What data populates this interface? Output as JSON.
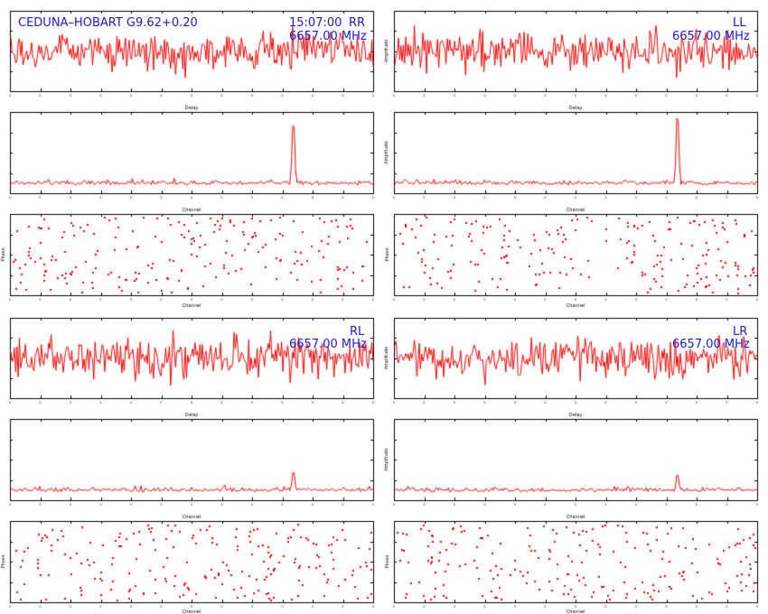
{
  "header": {
    "baseline": "CEDUNA–HOBART G9.62+0.20",
    "time": "15:07:00",
    "frequency": "6657.00 MHz"
  },
  "labels": {
    "delay": "Delay",
    "channel": "Channel",
    "amplitude": "Amplitude",
    "phase": "Phase"
  },
  "colors": {
    "trace": "#ff0000",
    "text": "#1a1adb",
    "axis": "#000000"
  },
  "chart_data": [
    {
      "type": "line",
      "panel": "delay",
      "pol": "RR",
      "xlabel": "Delay",
      "ylabel": "",
      "peak": null
    },
    {
      "type": "line",
      "panel": "channel",
      "pol": "RR",
      "xlabel": "Channel",
      "ylabel": "",
      "peak": {
        "x_frac": 0.78,
        "height": 0.85
      }
    },
    {
      "type": "scatter",
      "panel": "phase",
      "pol": "RR",
      "xlabel": "Channel",
      "ylabel": "Phase"
    },
    {
      "type": "line",
      "panel": "delay",
      "pol": "LL",
      "xlabel": "Delay",
      "ylabel": "Amplitude",
      "peak": null
    },
    {
      "type": "line",
      "panel": "channel",
      "pol": "LL",
      "xlabel": "Channel",
      "ylabel": "Amplitude",
      "peak": {
        "x_frac": 0.78,
        "height": 0.95
      }
    },
    {
      "type": "scatter",
      "panel": "phase",
      "pol": "LL",
      "xlabel": "Channel",
      "ylabel": "Phase"
    },
    {
      "type": "line",
      "panel": "delay",
      "pol": "RL",
      "xlabel": "Delay",
      "ylabel": "",
      "peak": null
    },
    {
      "type": "line",
      "panel": "channel",
      "pol": "RL",
      "xlabel": "Channel",
      "ylabel": "",
      "peak": {
        "x_frac": 0.78,
        "height": 0.25
      }
    },
    {
      "type": "scatter",
      "panel": "phase",
      "pol": "RL",
      "xlabel": "Channel",
      "ylabel": "Phase"
    },
    {
      "type": "line",
      "panel": "delay",
      "pol": "LR",
      "xlabel": "Delay",
      "ylabel": "Amplitude",
      "peak": null
    },
    {
      "type": "line",
      "panel": "channel",
      "pol": "LR",
      "xlabel": "Channel",
      "ylabel": "Amplitude",
      "peak": {
        "x_frac": 0.78,
        "height": 0.2
      }
    },
    {
      "type": "scatter",
      "panel": "phase",
      "pol": "LR",
      "xlabel": "Channel",
      "ylabel": "Phase"
    }
  ]
}
